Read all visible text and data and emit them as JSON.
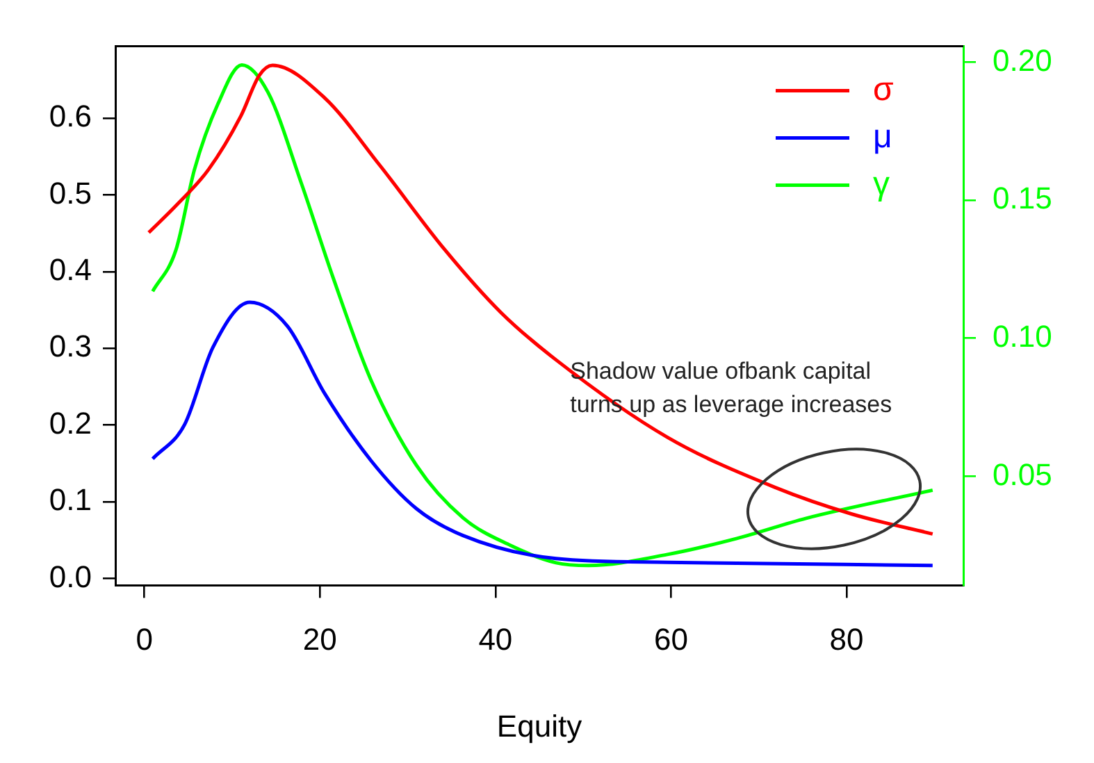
{
  "chart_data": {
    "type": "line",
    "xlabel": "Equity",
    "xlim": [
      -3.3,
      93.3
    ],
    "xticks": [
      0,
      20,
      40,
      60,
      80
    ],
    "ylim": [
      -0.009,
      0.694
    ],
    "yticks": [
      {
        "value": 0,
        "label": "0.0"
      },
      0.1,
      0.2,
      0.3,
      0.4,
      0.5,
      0.6
    ],
    "y2lim": [
      0.0105,
      0.2058
    ],
    "y2ticks": [
      0.05,
      {
        "value": 0.1,
        "label": "0.10"
      },
      0.15,
      {
        "value": 0.2,
        "label": "0.20"
      }
    ],
    "grid": false,
    "legend": "top right",
    "marker": "none",
    "line_style": "solid",
    "annotations": [
      "Shadow value ofbank capital",
      "turns up as leverage increases"
    ],
    "series": [
      {
        "name": "σ",
        "color": "#ff0000",
        "x": [
          0.5,
          3.6,
          7.3,
          11,
          13.1,
          14.6,
          20.5,
          26.8,
          34.2,
          40.6,
          46.9,
          59.6,
          71.8,
          80.6,
          89.8
        ],
        "values": [
          0.451,
          0.486,
          0.533,
          0.603,
          0.656,
          0.669,
          0.627,
          0.539,
          0.429,
          0.347,
          0.285,
          0.184,
          0.119,
          0.084,
          0.058
        ]
      },
      {
        "name": "μ",
        "color": "#0000ff",
        "x": [
          0.95,
          4.6,
          7.8,
          12,
          16.3,
          20.5,
          25.8,
          31,
          36.3,
          46.9,
          59.6,
          89.8
        ],
        "values": [
          0.156,
          0.201,
          0.301,
          0.36,
          0.329,
          0.242,
          0.154,
          0.091,
          0.056,
          0.026,
          0.021,
          0.017
        ]
      },
      {
        "name": "γ",
        "color": "#00ff00",
        "axis": "y2",
        "x": [
          0.95,
          3.6,
          5.7,
          8.4,
          11.1,
          14.1,
          17.9,
          21.5,
          25.8,
          31,
          36.3,
          41.7,
          46.9,
          50.6,
          59.6,
          67.5,
          75.4,
          89.8
        ],
        "values": [
          0.117,
          0.132,
          0.161,
          0.185,
          0.199,
          0.189,
          0.156,
          0.122,
          0.085,
          0.054,
          0.035,
          0.025,
          0.0187,
          0.0177,
          0.0217,
          0.0275,
          0.0348,
          0.045
        ]
      }
    ]
  }
}
